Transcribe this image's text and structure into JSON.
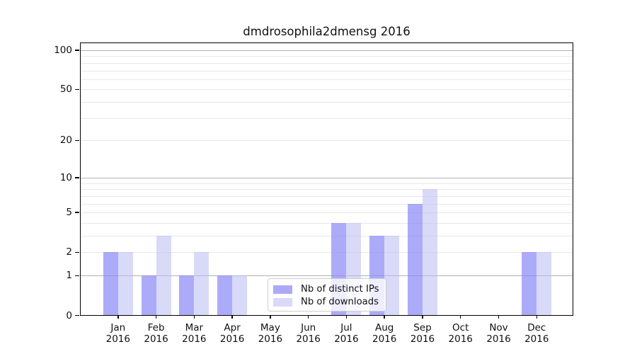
{
  "title": "dmdrosophila2dmensg 2016",
  "chart_data": {
    "type": "bar",
    "title": "dmdrosophila2dmensg 2016",
    "categories": [
      "Jan 2016",
      "Feb 2016",
      "Mar 2016",
      "Apr 2016",
      "May 2016",
      "Jun 2016",
      "Jul 2016",
      "Aug 2016",
      "Sep 2016",
      "Oct 2016",
      "Nov 2016",
      "Dec 2016"
    ],
    "x_axis": {
      "months": [
        "Jan",
        "Feb",
        "Mar",
        "Apr",
        "May",
        "Jun",
        "Jul",
        "Aug",
        "Sep",
        "Oct",
        "Nov",
        "Dec"
      ],
      "year": "2016"
    },
    "series": [
      {
        "name": "Nb of distinct IPs",
        "color": "#abaaf8",
        "fill": "rgba(137,136,247,0.7)",
        "values": [
          2,
          1,
          1,
          1,
          0,
          0,
          4,
          3,
          6,
          0,
          0,
          2
        ]
      },
      {
        "name": "Nb of downloads",
        "color": "#dadaf8",
        "fill": "rgba(186,185,243,0.55)",
        "values": [
          2,
          3,
          2,
          1,
          0,
          0,
          4,
          3,
          8,
          0,
          0,
          2
        ]
      }
    ],
    "y_axis": {
      "scale": "log1p",
      "ticks": [
        0,
        1,
        2,
        5,
        10,
        20,
        50,
        100
      ],
      "major_gridlines": [
        1,
        10,
        100
      ],
      "minor_gridlines": [
        2,
        3,
        4,
        5,
        6,
        7,
        8,
        9,
        20,
        30,
        40,
        50,
        60,
        70,
        80,
        90
      ],
      "range": [
        0,
        115
      ]
    },
    "legend": {
      "position": "lower center"
    },
    "grid": true
  },
  "colors": {
    "bar_distinct_ips": "#abaaf8",
    "bar_downloads": "#dadaf8",
    "grid_major": "#b2b2b2",
    "grid_minor": "#e8e8e8",
    "axis": "#000000",
    "legend_border": "#cccccc",
    "background": "#ffffff"
  }
}
